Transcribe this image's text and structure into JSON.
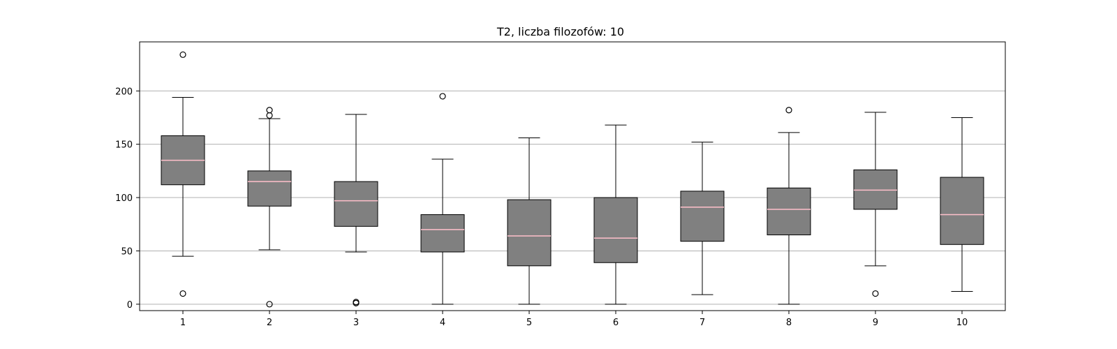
{
  "chart_data": {
    "type": "boxplot",
    "title": "T2, liczba filozofów: 10",
    "xlabel": "",
    "ylabel": "",
    "categories": [
      "1",
      "2",
      "3",
      "4",
      "5",
      "6",
      "7",
      "8",
      "9",
      "10"
    ],
    "ylim": [
      -6,
      246
    ],
    "yticks": [
      0,
      50,
      100,
      150,
      200
    ],
    "grid": "y",
    "boxes": [
      {
        "whislo": 45,
        "q1": 112,
        "med": 135,
        "q3": 158,
        "whishi": 194,
        "fliers": [
          234,
          10
        ]
      },
      {
        "whislo": 51,
        "q1": 92,
        "med": 115,
        "q3": 125,
        "whishi": 174,
        "fliers": [
          182,
          177,
          0
        ]
      },
      {
        "whislo": 49,
        "q1": 73,
        "med": 97,
        "q3": 115,
        "whishi": 178,
        "fliers": [
          2,
          1
        ]
      },
      {
        "whislo": 0,
        "q1": 49,
        "med": 70,
        "q3": 84,
        "whishi": 136,
        "fliers": [
          195
        ]
      },
      {
        "whislo": 0,
        "q1": 36,
        "med": 64,
        "q3": 98,
        "whishi": 156,
        "fliers": []
      },
      {
        "whislo": 0,
        "q1": 39,
        "med": 62,
        "q3": 100,
        "whishi": 168,
        "fliers": []
      },
      {
        "whislo": 9,
        "q1": 59,
        "med": 91,
        "q3": 106,
        "whishi": 152,
        "fliers": []
      },
      {
        "whislo": 0,
        "q1": 65,
        "med": 89,
        "q3": 109,
        "whishi": 161,
        "fliers": [
          182
        ]
      },
      {
        "whislo": 36,
        "q1": 89,
        "med": 107,
        "q3": 126,
        "whishi": 180,
        "fliers": [
          10
        ]
      },
      {
        "whislo": 12,
        "q1": 56,
        "med": 84,
        "q3": 119,
        "whishi": 175,
        "fliers": []
      }
    ],
    "colors": {
      "box_fill": "#808080",
      "median": "#ffc0cb",
      "grid": "#b0b0b0",
      "axis": "#000000"
    }
  }
}
